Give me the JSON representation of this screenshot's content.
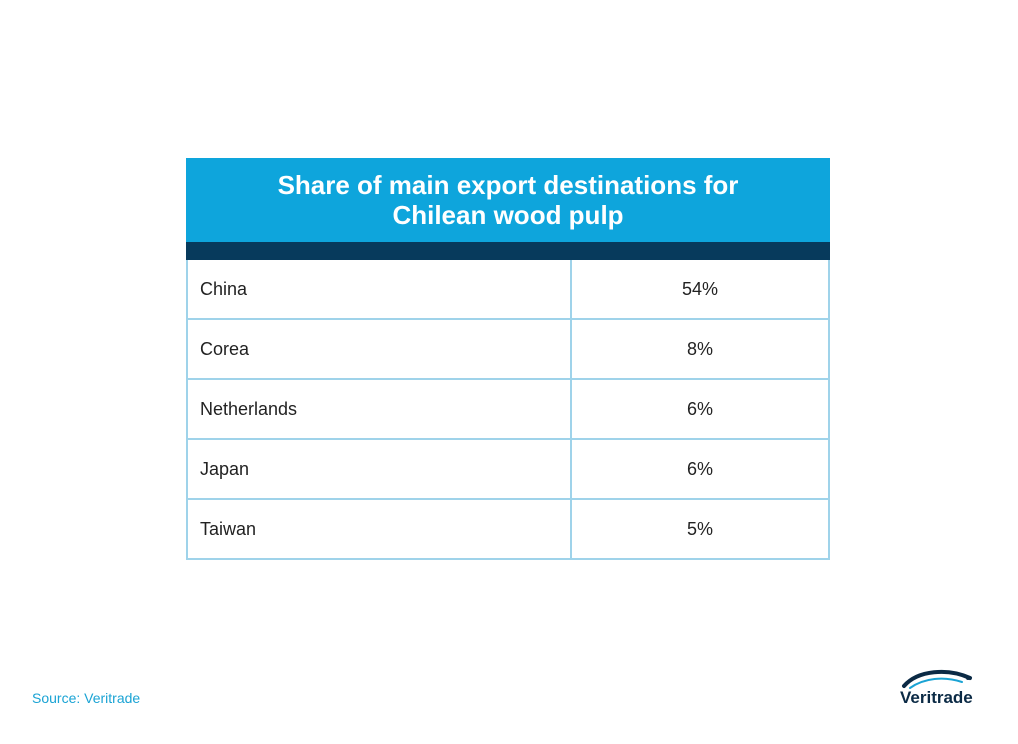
{
  "chart_data": {
    "type": "table",
    "title": "Share of main export destinations for Chilean wood pulp",
    "title_lines": [
      "Share of main export destinations for",
      "Chilean wood pulp"
    ],
    "rows": [
      {
        "country": "China",
        "share": "54%"
      },
      {
        "country": "Corea",
        "share": "8%"
      },
      {
        "country": "Netherlands",
        "share": "6%"
      },
      {
        "country": "Japan",
        "share": "6%"
      },
      {
        "country": "Taiwan",
        "share": "5%"
      }
    ]
  },
  "footer": {
    "source": "Source: Veritrade",
    "logo_text": "Veritrade"
  },
  "colors": {
    "header": "#0ea5dc",
    "header_bar": "#073a5c",
    "border": "#9fd3ea",
    "source_text": "#1aa3d4"
  }
}
